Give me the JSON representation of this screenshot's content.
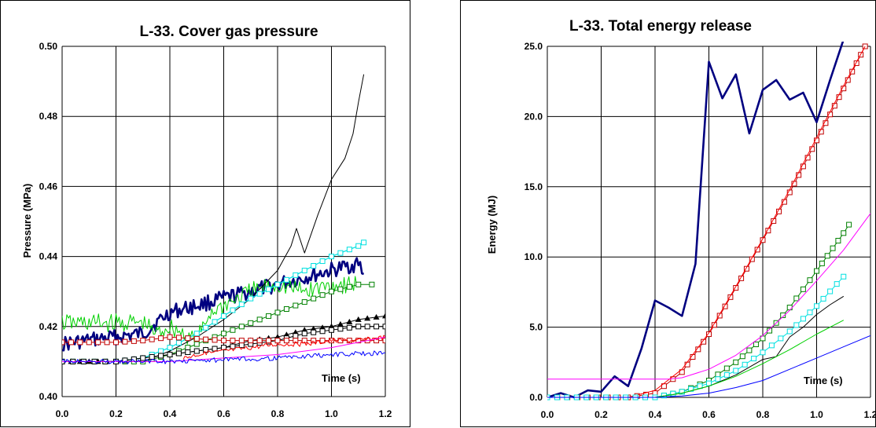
{
  "chart_data": [
    {
      "type": "line",
      "title": "L-33. Cover gas pressure",
      "ylabel": "Pressure (MPa)",
      "xlabel": "Time (s)",
      "xlim": [
        0.0,
        1.2
      ],
      "ylim": [
        0.4,
        0.5
      ],
      "x_ticks": [
        "0.0",
        "0.2",
        "0.4",
        "0.6",
        "0.8",
        "1.0",
        "1.2"
      ],
      "y_ticks": [
        "0.40",
        "0.42",
        "0.44",
        "0.46",
        "0.48",
        "0.50"
      ],
      "grid": true,
      "series": [
        {
          "color": "#000080",
          "noisy": true,
          "marker": "none",
          "width": 2.6,
          "x": [
            0.0,
            0.1,
            0.2,
            0.3,
            0.4,
            0.5,
            0.6,
            0.7,
            0.8,
            0.9,
            1.0,
            1.1,
            1.12
          ],
          "y": [
            0.415,
            0.416,
            0.417,
            0.418,
            0.424,
            0.426,
            0.428,
            0.43,
            0.432,
            0.434,
            0.436,
            0.438,
            0.435
          ]
        },
        {
          "color": "#00d000",
          "noisy": true,
          "marker": "none",
          "width": 1,
          "x": [
            0.0,
            0.2,
            0.3,
            0.35,
            0.4,
            0.5,
            0.55,
            0.6,
            0.7,
            0.8,
            0.9,
            1.0,
            1.1
          ],
          "y": [
            0.421,
            0.421,
            0.421,
            0.418,
            0.42,
            0.416,
            0.424,
            0.426,
            0.43,
            0.432,
            0.43,
            0.432,
            0.432
          ]
        },
        {
          "color": "#000000",
          "marker": "none",
          "width": 1,
          "x": [
            0.0,
            0.3,
            0.4,
            0.5,
            0.6,
            0.7,
            0.8,
            0.85,
            0.87,
            0.9,
            0.95,
            1.0,
            1.05,
            1.08,
            1.1,
            1.12
          ],
          "y": [
            0.41,
            0.41,
            0.413,
            0.417,
            0.422,
            0.428,
            0.436,
            0.443,
            0.448,
            0.441,
            0.452,
            0.462,
            0.468,
            0.475,
            0.484,
            0.492
          ]
        },
        {
          "color": "#00e0e0",
          "marker": "square",
          "width": 1.2,
          "x": [
            0.0,
            0.2,
            0.3,
            0.4,
            0.5,
            0.6,
            0.7,
            0.8,
            0.9,
            1.0,
            1.1,
            1.12
          ],
          "y": [
            0.41,
            0.41,
            0.411,
            0.414,
            0.418,
            0.423,
            0.428,
            0.432,
            0.436,
            0.44,
            0.443,
            0.444
          ]
        },
        {
          "color": "#008000",
          "marker": "square",
          "width": 1,
          "x": [
            0.0,
            0.2,
            0.3,
            0.4,
            0.5,
            0.6,
            0.7,
            0.8,
            0.9,
            1.0,
            1.1,
            1.15
          ],
          "y": [
            0.41,
            0.41,
            0.41,
            0.412,
            0.415,
            0.418,
            0.421,
            0.424,
            0.427,
            0.43,
            0.432,
            0.432
          ]
        },
        {
          "color": "#000000",
          "marker": "triangle",
          "width": 1,
          "x": [
            0.0,
            0.1,
            0.2,
            0.3,
            0.4,
            0.5,
            0.6,
            0.7,
            0.8,
            0.9,
            1.0,
            1.1,
            1.2
          ],
          "y": [
            0.41,
            0.41,
            0.41,
            0.411,
            0.412,
            0.413,
            0.414,
            0.416,
            0.417,
            0.419,
            0.42,
            0.422,
            0.423
          ]
        },
        {
          "color": "#000000",
          "marker": "square-open",
          "width": 1,
          "x": [
            0.0,
            0.2,
            0.3,
            0.4,
            0.5,
            0.6,
            0.7,
            0.8,
            0.9,
            1.0,
            1.1,
            1.2
          ],
          "y": [
            0.41,
            0.41,
            0.411,
            0.412,
            0.413,
            0.414,
            0.415,
            0.416,
            0.418,
            0.419,
            0.42,
            0.42
          ]
        },
        {
          "color": "#c00000",
          "marker": "square",
          "width": 1,
          "x": [
            0.0,
            0.1,
            0.2,
            0.3,
            0.4,
            0.5,
            0.6,
            0.7,
            0.8,
            0.9,
            1.0,
            1.1,
            1.2
          ],
          "y": [
            0.4155,
            0.4155,
            0.4155,
            0.416,
            0.417,
            0.4165,
            0.416,
            0.416,
            0.416,
            0.416,
            0.416,
            0.416,
            0.416
          ]
        },
        {
          "color": "#ff0000",
          "noisy": true,
          "marker": "none",
          "width": 1,
          "x": [
            0.45,
            0.5,
            0.6,
            0.7,
            0.8,
            0.9,
            1.0,
            1.1,
            1.2
          ],
          "y": [
            0.411,
            0.412,
            0.413,
            0.414,
            0.415,
            0.415,
            0.416,
            0.416,
            0.417
          ]
        },
        {
          "color": "#ff00ff",
          "marker": "none",
          "width": 1,
          "x": [
            0.0,
            0.4,
            0.6,
            0.8,
            1.0,
            1.2
          ],
          "y": [
            0.41,
            0.41,
            0.411,
            0.412,
            0.414,
            0.417
          ]
        },
        {
          "color": "#0000ff",
          "noisy": true,
          "marker": "none",
          "width": 1,
          "x": [
            0.0,
            0.4,
            0.6,
            0.8,
            1.0,
            1.2
          ],
          "y": [
            0.41,
            0.41,
            0.4105,
            0.411,
            0.412,
            0.4125
          ]
        }
      ]
    },
    {
      "type": "line",
      "title": "L-33. Total energy release",
      "ylabel": "Energy (MJ)",
      "xlabel": "Time (s)",
      "xlim": [
        0.0,
        1.2
      ],
      "ylim": [
        0.0,
        25.0
      ],
      "x_ticks": [
        "0.0",
        "0.2",
        "0.4",
        "0.6",
        "0.8",
        "1.0",
        "1.2"
      ],
      "y_ticks": [
        "0.0",
        "5.0",
        "10.0",
        "15.0",
        "20.0",
        "25.0"
      ],
      "grid": true,
      "series": [
        {
          "color": "#000080",
          "marker": "none",
          "width": 2.6,
          "x": [
            0.0,
            0.05,
            0.1,
            0.15,
            0.2,
            0.25,
            0.3,
            0.35,
            0.4,
            0.45,
            0.5,
            0.55,
            0.6,
            0.65,
            0.7,
            0.75,
            0.8,
            0.85,
            0.9,
            0.95,
            1.0,
            1.05,
            1.1
          ],
          "y": [
            0.0,
            0.3,
            0.0,
            0.5,
            0.4,
            1.5,
            0.8,
            3.5,
            6.9,
            6.4,
            5.8,
            9.5,
            23.9,
            21.3,
            23.0,
            18.8,
            21.9,
            22.6,
            21.2,
            21.7,
            19.6,
            22.6,
            25.5
          ]
        },
        {
          "color": "#c00000",
          "marker": "square",
          "width": 1,
          "x": [
            0.0,
            0.3,
            0.4,
            0.5,
            0.6,
            0.7,
            0.8,
            0.9,
            1.0,
            1.1,
            1.18
          ],
          "y": [
            0.0,
            0.0,
            0.3,
            1.8,
            4.5,
            7.8,
            11.2,
            14.6,
            18.3,
            22.0,
            25.0
          ]
        },
        {
          "color": "#ff0000",
          "marker": "none",
          "width": 1,
          "x": [
            0.3,
            0.4,
            0.5,
            0.6,
            0.7,
            0.8,
            0.9,
            1.0,
            1.1,
            1.18
          ],
          "y": [
            0.0,
            0.5,
            2.0,
            4.6,
            7.9,
            11.3,
            14.8,
            18.5,
            22.2,
            25.0
          ]
        },
        {
          "color": "#008000",
          "marker": "square",
          "width": 1,
          "x": [
            0.0,
            0.4,
            0.5,
            0.6,
            0.7,
            0.8,
            0.9,
            1.0,
            1.1,
            1.12
          ],
          "y": [
            0.0,
            0.0,
            0.4,
            1.2,
            2.5,
            4.2,
            6.4,
            9.0,
            11.7,
            12.3
          ]
        },
        {
          "color": "#ff00ff",
          "marker": "none",
          "width": 1,
          "x": [
            0.0,
            0.45,
            0.5,
            0.6,
            0.7,
            0.8,
            0.9,
            1.0,
            1.1,
            1.2
          ],
          "y": [
            1.3,
            1.3,
            1.4,
            2.0,
            3.0,
            4.4,
            6.2,
            8.3,
            10.5,
            13.1
          ]
        },
        {
          "color": "#00e0e0",
          "marker": "square",
          "width": 1,
          "x": [
            0.0,
            0.4,
            0.5,
            0.6,
            0.7,
            0.8,
            0.9,
            1.0,
            1.1
          ],
          "y": [
            0.0,
            0.0,
            0.4,
            1.0,
            1.9,
            3.2,
            4.7,
            6.5,
            8.6
          ]
        },
        {
          "color": "#000000",
          "marker": "none",
          "width": 1,
          "x": [
            0.0,
            0.4,
            0.5,
            0.6,
            0.7,
            0.8,
            0.85,
            0.9,
            0.95,
            1.0,
            1.05,
            1.1
          ],
          "y": [
            0.0,
            0.0,
            0.3,
            0.8,
            1.6,
            2.7,
            2.9,
            4.3,
            5.0,
            5.9,
            6.6,
            7.2
          ]
        },
        {
          "color": "#00d000",
          "marker": "none",
          "width": 1,
          "x": [
            0.0,
            0.4,
            0.5,
            0.6,
            0.7,
            0.8,
            0.9,
            1.0,
            1.1
          ],
          "y": [
            0.0,
            0.0,
            0.3,
            0.8,
            1.5,
            2.4,
            3.4,
            4.5,
            5.5
          ]
        },
        {
          "color": "#0000ff",
          "marker": "none",
          "width": 1,
          "x": [
            0.0,
            0.4,
            0.5,
            0.6,
            0.7,
            0.8,
            0.9,
            1.0,
            1.1,
            1.2
          ],
          "y": [
            0.0,
            0.0,
            0.1,
            0.3,
            0.7,
            1.2,
            2.0,
            2.8,
            3.6,
            4.4
          ]
        }
      ]
    }
  ]
}
